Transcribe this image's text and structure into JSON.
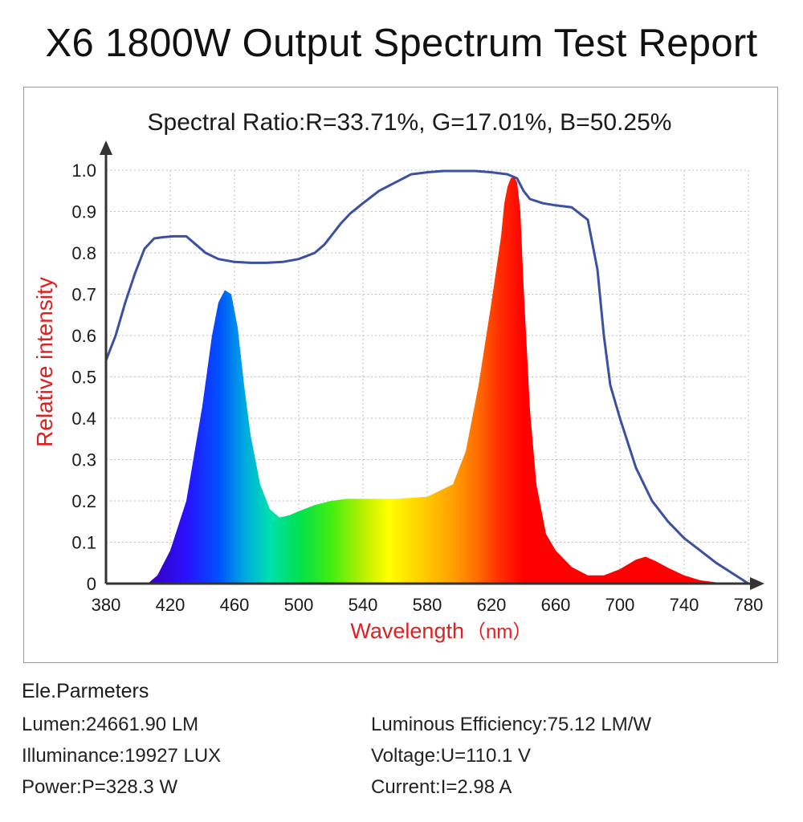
{
  "title": "X6 1800W Output Spectrum Test Report",
  "chart_data": {
    "type": "area",
    "title": "Spectral Ratio:R=33.71%, G=17.01%, B=50.25%",
    "xlabel": "Wavelength",
    "xlabel_unit": "（nm）",
    "ylabel": "Relative intensity",
    "xlim": [
      380,
      780
    ],
    "ylim": [
      0,
      1.0
    ],
    "x_ticks": [
      "380",
      "420",
      "460",
      "500",
      "540",
      "580",
      "620",
      "660",
      "700",
      "740",
      "780"
    ],
    "y_ticks": [
      "0",
      "0.1",
      "0.2",
      "0.3",
      "0.4",
      "0.5",
      "0.6",
      "0.7",
      "0.8",
      "0.9",
      "1.0"
    ],
    "grid": true,
    "colors": {
      "reflector_line": "#3b4fa3",
      "axis": "#333333",
      "grid": "#bfbfbf",
      "ylabel": "#e02020",
      "xlabel": "#e02020"
    },
    "series": [
      {
        "kind": "spectrum",
        "x": [
          406,
          412,
          420,
          430,
          440,
          446,
          450,
          454,
          458,
          462,
          466,
          470,
          476,
          482,
          488,
          494,
          500,
          510,
          520,
          530,
          540,
          560,
          580,
          596,
          604,
          612,
          620,
          626,
          628,
          630,
          632,
          634,
          636,
          638,
          640,
          644,
          648,
          654,
          660,
          670,
          680,
          690,
          700,
          710,
          716,
          722,
          730,
          740,
          750,
          760,
          770,
          780
        ],
        "y": [
          0.0,
          0.02,
          0.08,
          0.2,
          0.43,
          0.6,
          0.68,
          0.71,
          0.7,
          0.62,
          0.48,
          0.36,
          0.24,
          0.18,
          0.16,
          0.165,
          0.175,
          0.19,
          0.2,
          0.205,
          0.205,
          0.205,
          0.21,
          0.24,
          0.32,
          0.48,
          0.68,
          0.84,
          0.92,
          0.96,
          0.98,
          0.985,
          0.97,
          0.9,
          0.72,
          0.42,
          0.24,
          0.12,
          0.08,
          0.04,
          0.02,
          0.02,
          0.035,
          0.058,
          0.065,
          0.055,
          0.038,
          0.02,
          0.008,
          0.003,
          0.0,
          0.0
        ]
      },
      {
        "kind": "line",
        "x": [
          380,
          386,
          392,
          398,
          404,
          410,
          416,
          422,
          430,
          436,
          442,
          450,
          460,
          470,
          480,
          490,
          500,
          510,
          516,
          522,
          526,
          532,
          540,
          550,
          560,
          570,
          580,
          590,
          600,
          610,
          620,
          630,
          636,
          640,
          644,
          648,
          652,
          660,
          670,
          680,
          686,
          690,
          694,
          700,
          710,
          720,
          730,
          740,
          750,
          760,
          770,
          780
        ],
        "y": [
          0.54,
          0.6,
          0.68,
          0.75,
          0.81,
          0.835,
          0.838,
          0.84,
          0.84,
          0.82,
          0.8,
          0.785,
          0.778,
          0.776,
          0.776,
          0.778,
          0.785,
          0.8,
          0.82,
          0.85,
          0.87,
          0.895,
          0.92,
          0.95,
          0.97,
          0.99,
          0.995,
          0.998,
          0.998,
          0.998,
          0.995,
          0.99,
          0.98,
          0.95,
          0.93,
          0.925,
          0.92,
          0.915,
          0.91,
          0.88,
          0.76,
          0.6,
          0.48,
          0.4,
          0.28,
          0.2,
          0.15,
          0.11,
          0.08,
          0.05,
          0.025,
          0.0
        ]
      }
    ]
  },
  "params": {
    "heading": "Ele.Parmeters",
    "lumen": "Lumen:24661.90 LM",
    "illuminance": "Illuminance:19927 LUX",
    "power": "Power:P=328.3 W",
    "efficiency": "Luminous Efficiency:75.12 LM/W",
    "voltage": "Voltage:U=110.1 V",
    "current": "Current:I=2.98 A"
  }
}
